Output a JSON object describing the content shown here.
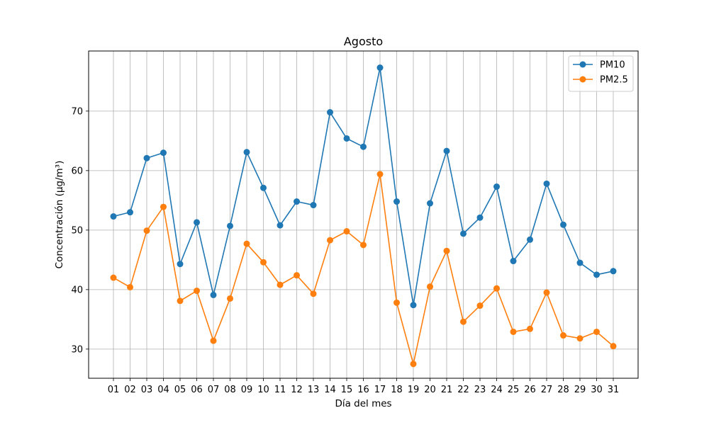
{
  "chart_data": {
    "type": "line",
    "title": "Agosto",
    "xlabel": "Día del mes",
    "ylabel": "Concentración (µg/m³)",
    "categories": [
      "01",
      "02",
      "03",
      "04",
      "05",
      "06",
      "07",
      "08",
      "09",
      "10",
      "11",
      "12",
      "13",
      "14",
      "15",
      "16",
      "17",
      "18",
      "19",
      "20",
      "21",
      "22",
      "23",
      "24",
      "25",
      "26",
      "27",
      "28",
      "29",
      "30",
      "31"
    ],
    "ylim": [
      25.1,
      80.1
    ],
    "yticks": [
      30,
      40,
      50,
      60,
      70
    ],
    "grid": true,
    "legend_position": "top-right",
    "series": [
      {
        "name": "PM10",
        "color": "#1f77b4",
        "values": [
          52.3,
          53.0,
          62.1,
          63.0,
          44.3,
          51.3,
          39.1,
          50.7,
          63.1,
          57.1,
          50.8,
          54.8,
          54.2,
          69.8,
          65.4,
          64.0,
          77.3,
          54.8,
          37.4,
          54.5,
          63.3,
          49.4,
          52.1,
          57.3,
          44.8,
          48.4,
          57.8,
          50.9,
          44.5,
          42.5,
          43.1
        ]
      },
      {
        "name": "PM2.5",
        "color": "#ff7f0e",
        "values": [
          42.0,
          40.4,
          49.9,
          53.9,
          38.1,
          39.8,
          31.4,
          38.5,
          47.7,
          44.6,
          40.8,
          42.4,
          39.3,
          48.3,
          49.8,
          47.5,
          59.4,
          37.8,
          27.5,
          40.5,
          46.5,
          34.6,
          37.3,
          40.2,
          32.9,
          33.4,
          39.5,
          32.3,
          31.8,
          32.9,
          30.5
        ]
      }
    ]
  }
}
